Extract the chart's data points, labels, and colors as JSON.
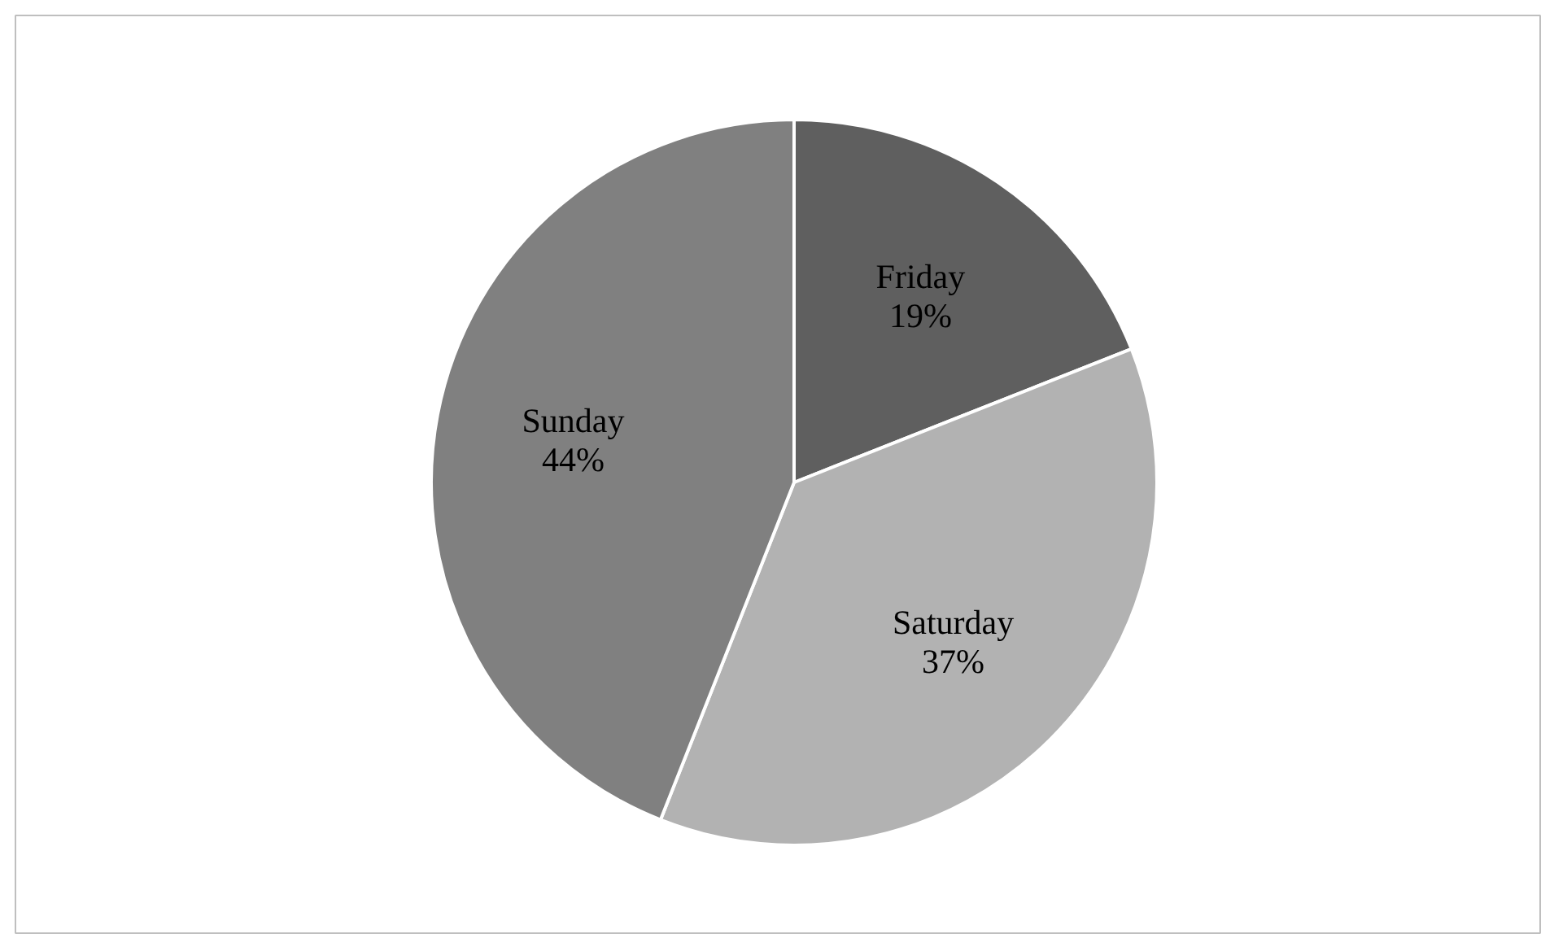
{
  "chart_data": {
    "type": "pie",
    "categories": [
      "Friday",
      "Saturday",
      "Sunday"
    ],
    "values": [
      19,
      37,
      44
    ],
    "colors": [
      "#5f5f5f",
      "#b2b2b2",
      "#808080"
    ],
    "value_labels": [
      "19%",
      "37%",
      "44%"
    ]
  }
}
